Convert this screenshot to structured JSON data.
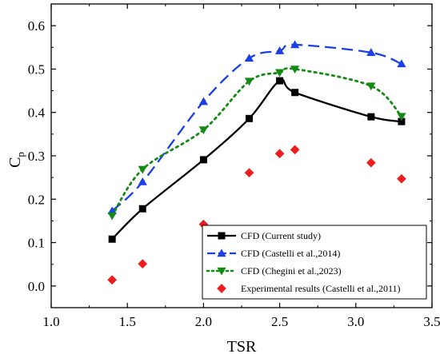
{
  "chart_data": {
    "type": "line",
    "xlabel": "TSR",
    "ylabel": "C",
    "ylabel_sub": "p",
    "xlim": [
      1.0,
      3.5
    ],
    "ylim": [
      -0.05,
      0.65
    ],
    "xticks": [
      1.0,
      1.5,
      2.0,
      2.5,
      3.0,
      3.5
    ],
    "xtick_labels": [
      "1.0",
      "1.5",
      "2.0",
      "2.5",
      "3.0",
      "3.5"
    ],
    "yticks": [
      0.0,
      0.1,
      0.2,
      0.3,
      0.4,
      0.5,
      0.6
    ],
    "ytick_labels": [
      "0.0",
      "0.1",
      "0.2",
      "0.3",
      "0.4",
      "0.5",
      "0.6"
    ],
    "grid": false,
    "legend_position": "bottom-right",
    "series": [
      {
        "name": "CFD (Current study)",
        "color": "#000000",
        "marker": "square",
        "line": "solid",
        "x": [
          1.4,
          1.6,
          2.0,
          2.3,
          2.5,
          2.6,
          3.1,
          3.3
        ],
        "y": [
          0.108,
          0.178,
          0.291,
          0.386,
          0.473,
          0.446,
          0.39,
          0.379
        ]
      },
      {
        "name": "CFD (Castelli et al.,2014)",
        "color": "#1a3fe6",
        "marker": "triangle-up",
        "line": "dashed",
        "x": [
          1.4,
          1.6,
          2.0,
          2.3,
          2.5,
          2.6,
          3.1,
          3.3
        ],
        "y": [
          0.173,
          0.24,
          0.425,
          0.525,
          0.542,
          0.556,
          0.538,
          0.512
        ]
      },
      {
        "name": "CFD (Chegini et al.,2023)",
        "color": "#138a13",
        "marker": "triangle-down",
        "line": "dotted",
        "x": [
          1.4,
          1.6,
          2.0,
          2.3,
          2.5,
          2.6,
          3.1,
          3.3
        ],
        "y": [
          0.162,
          0.269,
          0.36,
          0.472,
          0.492,
          0.5,
          0.461,
          0.391
        ]
      },
      {
        "name": "Experimental results (Castelli et al.,2011)",
        "color": "#ee1c1c",
        "marker": "diamond",
        "line": "none",
        "x": [
          1.4,
          1.6,
          2.0,
          2.3,
          2.5,
          2.6,
          3.1,
          3.3
        ],
        "y": [
          0.014,
          0.051,
          0.142,
          0.261,
          0.305,
          0.314,
          0.284,
          0.247
        ]
      }
    ]
  }
}
